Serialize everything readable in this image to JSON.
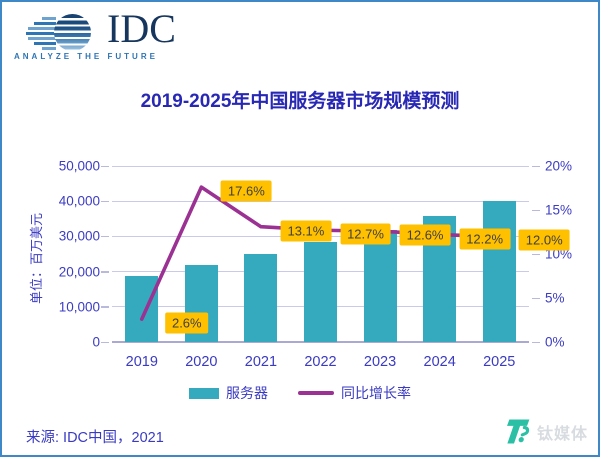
{
  "logo": {
    "name": "IDC",
    "tagline": "ANALYZE THE FUTURE"
  },
  "chart_data": {
    "type": "bar+line",
    "title": "2019-2025年中国服务器市场规模预测",
    "categories": [
      "2019",
      "2020",
      "2021",
      "2022",
      "2023",
      "2024",
      "2025"
    ],
    "series": [
      {
        "name": "服务器",
        "type": "bar",
        "axis": "left",
        "values": [
          18700,
          22000,
          25100,
          28400,
          31900,
          35700,
          40100
        ],
        "color": "#35AABF"
      },
      {
        "name": "同比增长率",
        "type": "line",
        "axis": "right",
        "values": [
          2.6,
          17.6,
          13.1,
          12.7,
          12.6,
          12.2,
          12.0
        ],
        "labels": [
          "2.6%",
          "17.6%",
          "13.1%",
          "12.7%",
          "12.6%",
          "12.2%",
          "12.0%"
        ],
        "color": "#9B3192",
        "label_bg": "#FFC000"
      }
    ],
    "left_axis": {
      "label": "单位：百万美元",
      "min": 0,
      "max": 50000,
      "ticks": [
        "0",
        "10,000",
        "20,000",
        "30,000",
        "40,000",
        "50,000"
      ]
    },
    "right_axis": {
      "min": 0,
      "max": 20,
      "ticks": [
        "0%",
        "5%",
        "10%",
        "15%",
        "20%"
      ]
    },
    "grid": true,
    "legend_position": "bottom"
  },
  "source": "来源: IDC中国，2021",
  "watermark": {
    "text": "钛媒体",
    "logo_color": "#2BC0A5"
  }
}
